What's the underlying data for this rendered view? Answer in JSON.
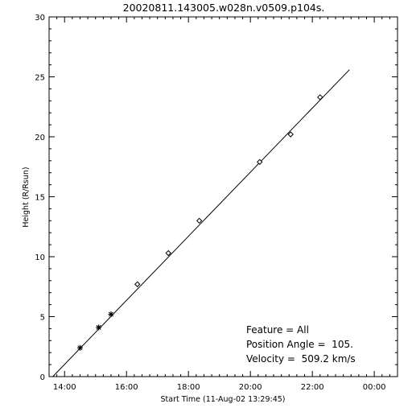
{
  "chart_data": {
    "type": "scatter",
    "title": "20020811.143005.w028n.v0509.p104s.",
    "xlabel": "Start Time (11-Aug-02 13:29:45)",
    "ylabel": "Height (R/Rsun)",
    "x_unit": "hours since 11-Aug-02 00:00",
    "xlim": [
      13.5,
      24.75
    ],
    "ylim": [
      0,
      30
    ],
    "x_ticks": [
      {
        "value": 14,
        "label": "14:00"
      },
      {
        "value": 16,
        "label": "16:00"
      },
      {
        "value": 18,
        "label": "18:00"
      },
      {
        "value": 20,
        "label": "20:00"
      },
      {
        "value": 22,
        "label": "22:00"
      },
      {
        "value": 24,
        "label": "00:00"
      }
    ],
    "y_ticks": [
      0,
      5,
      10,
      15,
      20,
      25,
      30
    ],
    "series": [
      {
        "marker": "asterisk",
        "x": [
          14.5,
          15.1,
          15.5
        ],
        "y": [
          2.4,
          4.1,
          5.2
        ]
      },
      {
        "marker": "diamond",
        "x": [
          16.35,
          17.35,
          18.35,
          20.3,
          21.3,
          22.25
        ],
        "y": [
          7.7,
          10.3,
          13.0,
          17.9,
          20.2,
          23.3
        ]
      }
    ],
    "fit_line": {
      "x": [
        13.62,
        23.2
      ],
      "y": [
        0,
        25.6
      ]
    },
    "annotations": {
      "feature": "Feature = All",
      "position_angle": "Position Angle =  105.",
      "velocity": "Velocity =  509.2 km/s"
    },
    "grid": false,
    "legend": "none"
  }
}
